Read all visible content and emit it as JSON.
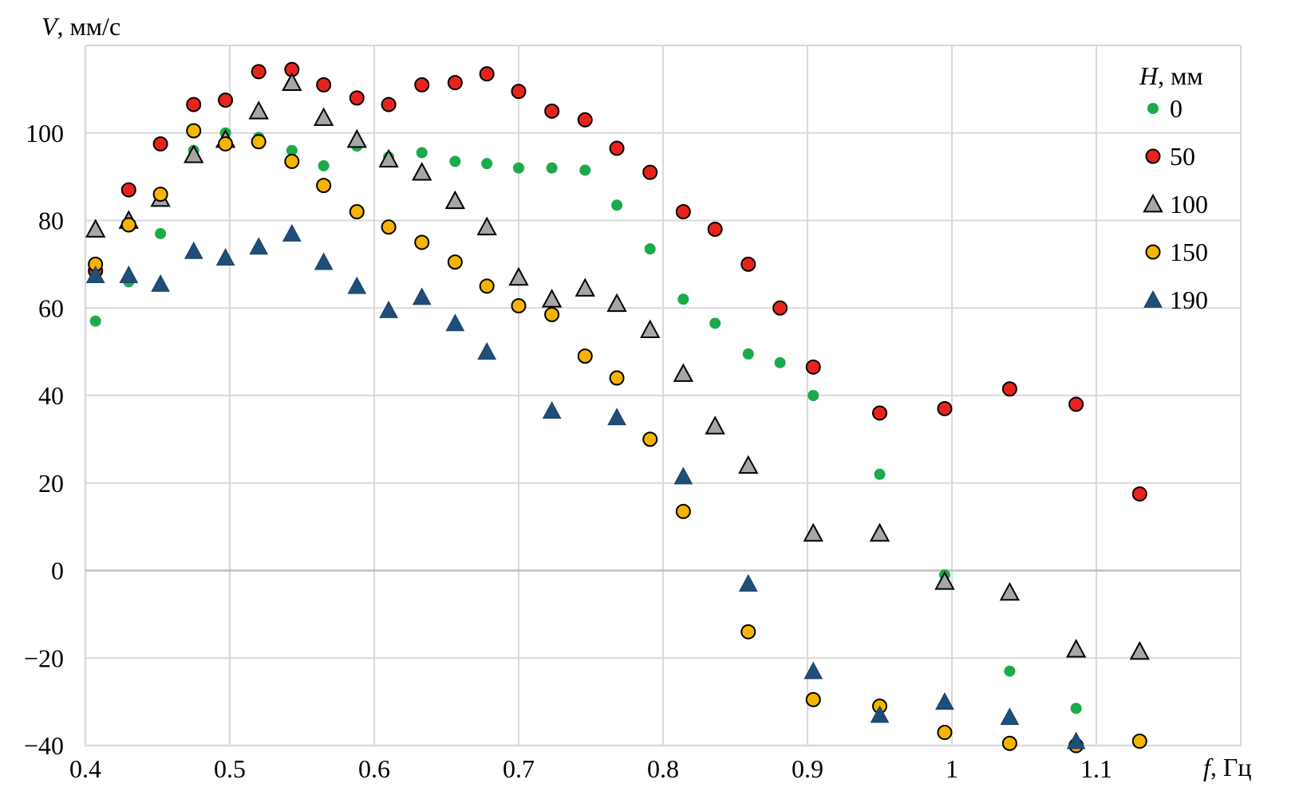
{
  "chart_data": {
    "type": "scatter",
    "title": "",
    "y_axis": {
      "var": "V",
      "unit": ", мм/с"
    },
    "x_axis": {
      "var": "f",
      "unit": ", Гц"
    },
    "xlim": [
      0.4,
      1.2
    ],
    "ylim": [
      -40,
      120
    ],
    "x_ticks": [
      0.4,
      0.5,
      0.6,
      0.7,
      0.8,
      0.9,
      1.0,
      1.1
    ],
    "x_tick_labels": [
      "0.4",
      "0.5",
      "0.6",
      "0.7",
      "0.8",
      "0.9",
      "1",
      "1.1"
    ],
    "y_ticks": [
      -40,
      -20,
      0,
      20,
      40,
      60,
      80,
      100
    ],
    "y_tick_labels": [
      "−40",
      "−20",
      "0",
      "20",
      "40",
      "60",
      "80",
      "100"
    ],
    "grid": true,
    "legend": {
      "title_var": "H",
      "title_unit": ", мм",
      "placement": "top-right"
    },
    "colors": {
      "green": "#1aab4b",
      "red": "#e8231b",
      "gray": "#a6a6a6",
      "yellow": "#f5b400",
      "blue": "#1f4e79",
      "grid": "#d9d9d9"
    },
    "series": [
      {
        "name": "0",
        "marker": "dot",
        "color": "#1aab4b",
        "points": [
          [
            0.407,
            57
          ],
          [
            0.43,
            66
          ],
          [
            0.452,
            77
          ],
          [
            0.475,
            96
          ],
          [
            0.497,
            100
          ],
          [
            0.52,
            99
          ],
          [
            0.543,
            96
          ],
          [
            0.565,
            92.5
          ],
          [
            0.588,
            97
          ],
          [
            0.61,
            94.5
          ],
          [
            0.633,
            95.5
          ],
          [
            0.656,
            93.5
          ],
          [
            0.678,
            93
          ],
          [
            0.7,
            92
          ],
          [
            0.723,
            92
          ],
          [
            0.746,
            91.5
          ],
          [
            0.768,
            83.5
          ],
          [
            0.791,
            73.5
          ],
          [
            0.814,
            62
          ],
          [
            0.836,
            56.5
          ],
          [
            0.859,
            49.5
          ],
          [
            0.881,
            47.5
          ],
          [
            0.904,
            40
          ],
          [
            0.95,
            22
          ],
          [
            0.995,
            -1
          ],
          [
            1.04,
            -23
          ],
          [
            1.086,
            -31.5
          ]
        ]
      },
      {
        "name": "50",
        "marker": "circle",
        "color": "#e8231b",
        "points": [
          [
            0.407,
            68.5
          ],
          [
            0.43,
            87
          ],
          [
            0.452,
            97.5
          ],
          [
            0.475,
            106.5
          ],
          [
            0.497,
            107.5
          ],
          [
            0.52,
            114
          ],
          [
            0.543,
            114.5
          ],
          [
            0.565,
            111
          ],
          [
            0.588,
            108
          ],
          [
            0.61,
            106.5
          ],
          [
            0.633,
            111
          ],
          [
            0.656,
            111.5
          ],
          [
            0.678,
            113.5
          ],
          [
            0.7,
            109.5
          ],
          [
            0.723,
            105
          ],
          [
            0.746,
            103
          ],
          [
            0.768,
            96.5
          ],
          [
            0.791,
            91
          ],
          [
            0.814,
            82
          ],
          [
            0.836,
            78
          ],
          [
            0.859,
            70
          ],
          [
            0.881,
            60
          ],
          [
            0.904,
            46.5
          ],
          [
            0.95,
            36
          ],
          [
            0.995,
            37
          ],
          [
            1.04,
            41.5
          ],
          [
            1.086,
            38
          ],
          [
            1.13,
            17.5
          ]
        ]
      },
      {
        "name": "100",
        "marker": "triangle",
        "color": "#a6a6a6",
        "points": [
          [
            0.407,
            78
          ],
          [
            0.43,
            80
          ],
          [
            0.452,
            85
          ],
          [
            0.475,
            95
          ],
          [
            0.497,
            98.5
          ],
          [
            0.52,
            105
          ],
          [
            0.543,
            111.5
          ],
          [
            0.565,
            103.5
          ],
          [
            0.588,
            98.5
          ],
          [
            0.61,
            94
          ],
          [
            0.633,
            91
          ],
          [
            0.656,
            84.5
          ],
          [
            0.678,
            78.5
          ],
          [
            0.7,
            67
          ],
          [
            0.723,
            62
          ],
          [
            0.746,
            64.5
          ],
          [
            0.768,
            61
          ],
          [
            0.791,
            55
          ],
          [
            0.814,
            45
          ],
          [
            0.836,
            33
          ],
          [
            0.859,
            24
          ],
          [
            0.904,
            8.5
          ],
          [
            0.95,
            8.5
          ],
          [
            0.995,
            -2.5
          ],
          [
            1.04,
            -5
          ],
          [
            1.086,
            -18
          ],
          [
            1.13,
            -18.5
          ]
        ]
      },
      {
        "name": "150",
        "marker": "circle",
        "color": "#f5b400",
        "points": [
          [
            0.407,
            70
          ],
          [
            0.43,
            79
          ],
          [
            0.452,
            86
          ],
          [
            0.475,
            100.5
          ],
          [
            0.497,
            97.5
          ],
          [
            0.52,
            98
          ],
          [
            0.543,
            93.5
          ],
          [
            0.565,
            88
          ],
          [
            0.588,
            82
          ],
          [
            0.61,
            78.5
          ],
          [
            0.633,
            75
          ],
          [
            0.656,
            70.5
          ],
          [
            0.678,
            65
          ],
          [
            0.7,
            60.5
          ],
          [
            0.723,
            58.5
          ],
          [
            0.746,
            49
          ],
          [
            0.768,
            44
          ],
          [
            0.791,
            30
          ],
          [
            0.814,
            13.5
          ],
          [
            0.859,
            -14
          ],
          [
            0.904,
            -29.5
          ],
          [
            0.95,
            -31
          ],
          [
            0.995,
            -37
          ],
          [
            1.04,
            -39.5
          ],
          [
            1.086,
            -40
          ],
          [
            1.13,
            -39
          ]
        ]
      },
      {
        "name": "190",
        "marker": "triangle",
        "color": "#1f4e79",
        "points": [
          [
            0.407,
            67.5
          ],
          [
            0.43,
            67.5
          ],
          [
            0.452,
            65.5
          ],
          [
            0.475,
            73
          ],
          [
            0.497,
            71.5
          ],
          [
            0.52,
            74
          ],
          [
            0.543,
            77
          ],
          [
            0.565,
            70.5
          ],
          [
            0.588,
            65
          ],
          [
            0.61,
            59.5
          ],
          [
            0.633,
            62.5
          ],
          [
            0.656,
            56.5
          ],
          [
            0.678,
            50
          ],
          [
            0.723,
            36.5
          ],
          [
            0.768,
            35
          ],
          [
            0.814,
            21.5
          ],
          [
            0.859,
            -3
          ],
          [
            0.904,
            -23
          ],
          [
            0.95,
            -33
          ],
          [
            0.995,
            -30
          ],
          [
            1.04,
            -33.5
          ],
          [
            1.086,
            -39
          ]
        ]
      }
    ]
  }
}
